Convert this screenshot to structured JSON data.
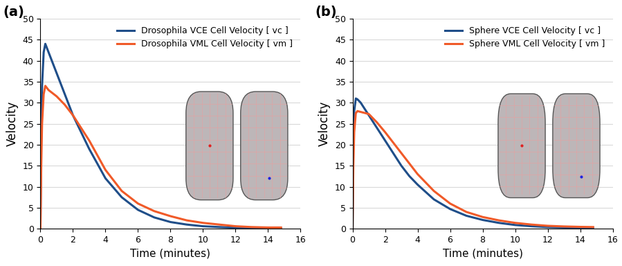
{
  "chart_data": [
    {
      "type": "line",
      "title": "(a)",
      "x_label": "Time (minutes)",
      "y_label": "Velocity",
      "x": [
        0,
        0.05,
        0.1,
        0.2,
        0.3,
        0.5,
        1,
        1.5,
        2,
        2.5,
        3,
        3.5,
        4,
        5,
        6,
        7,
        8,
        9,
        10,
        11,
        12,
        13,
        14,
        14.8
      ],
      "series": [
        {
          "name": "Drosophila VCE Cell Velocity [ vc ]",
          "color": "#1f4e89",
          "values": [
            0,
            22,
            34,
            42,
            44,
            42,
            37,
            32,
            27,
            23,
            19,
            15.5,
            12,
            7.5,
            4.5,
            2.7,
            1.6,
            1.0,
            0.6,
            0.4,
            0.25,
            0.15,
            0.1,
            0.1
          ]
        },
        {
          "name": "Drosophila VML Cell Velocity [ vm ]",
          "color": "#f05a28",
          "values": [
            0,
            15,
            25,
            32,
            34,
            33,
            31.5,
            29.5,
            27,
            24,
            21,
            17.5,
            14,
            9,
            6,
            4.2,
            3,
            2,
            1.4,
            1,
            0.6,
            0.4,
            0.3,
            0.3
          ]
        }
      ],
      "xlim": [
        0,
        16
      ],
      "xticks": [
        0,
        2,
        4,
        6,
        8,
        10,
        12,
        14,
        16
      ],
      "ylim": [
        0,
        50
      ],
      "yticks": [
        0,
        5,
        10,
        15,
        20,
        25,
        30,
        35,
        40,
        45,
        50
      ],
      "grid": true,
      "legend": "upper right"
    },
    {
      "type": "line",
      "title": "(b)",
      "x_label": "Time (minutes)",
      "y_label": "Velocity",
      "x": [
        0,
        0.05,
        0.1,
        0.2,
        0.3,
        0.5,
        1,
        1.5,
        2,
        2.5,
        3,
        3.5,
        4,
        5,
        6,
        7,
        8,
        9,
        10,
        11,
        12,
        13,
        14,
        14.8
      ],
      "series": [
        {
          "name": "Sphere VCE Cell Velocity [ vc ]",
          "color": "#1f4e89",
          "values": [
            0,
            20,
            28,
            31,
            30.8,
            30,
            27,
            24,
            21,
            18,
            15,
            12.5,
            10.5,
            7,
            4.7,
            3.1,
            2.1,
            1.4,
            0.9,
            0.6,
            0.4,
            0.3,
            0.2,
            0.2
          ]
        },
        {
          "name": "Sphere VML Cell Velocity [ vm ]",
          "color": "#f05a28",
          "values": [
            0,
            15,
            23,
            27.5,
            28,
            27.8,
            27.3,
            25.3,
            23,
            20.5,
            18,
            15.5,
            13,
            9,
            6,
            4,
            2.8,
            2,
            1.4,
            1,
            0.7,
            0.55,
            0.45,
            0.4
          ]
        }
      ],
      "xlim": [
        0,
        16
      ],
      "xticks": [
        0,
        2,
        4,
        6,
        8,
        10,
        12,
        14,
        16
      ],
      "ylim": [
        0,
        50
      ],
      "yticks": [
        0,
        5,
        10,
        15,
        20,
        25,
        30,
        35,
        40,
        45,
        50
      ],
      "grid": true,
      "legend": "upper right"
    }
  ]
}
